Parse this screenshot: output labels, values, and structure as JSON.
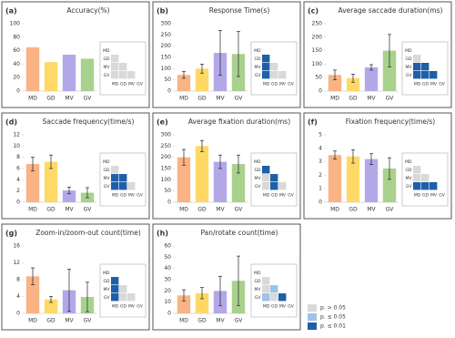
{
  "chart_data": [
    {
      "type": "bar",
      "label": "(a)",
      "title": "Accuracy(%)",
      "categories": [
        "MD",
        "GD",
        "MV",
        "GV"
      ],
      "values": [
        65,
        43,
        54,
        48
      ],
      "colors": [
        "#f9b384",
        "#ffd966",
        "#b4a7e8",
        "#a9d18e"
      ],
      "ylim": [
        0,
        100
      ],
      "yticks": [
        0,
        20,
        40,
        60,
        80,
        100
      ],
      "sig": [
        [
          0
        ],
        [
          0,
          0
        ],
        [
          0,
          0,
          0
        ]
      ]
    },
    {
      "type": "bar",
      "label": "(b)",
      "title": "Response Time(s)",
      "categories": [
        "MD",
        "GD",
        "MV",
        "GV"
      ],
      "values": [
        72,
        100,
        170,
        165
      ],
      "errors": [
        15,
        20,
        100,
        100
      ],
      "colors": [
        "#f9b384",
        "#ffd966",
        "#b4a7e8",
        "#a9d18e"
      ],
      "ylim": [
        0,
        300
      ],
      "yticks": [
        0,
        50,
        100,
        150,
        200,
        250,
        300
      ],
      "sig": [
        [
          2
        ],
        [
          2,
          0
        ],
        [
          2,
          0,
          0
        ]
      ]
    },
    {
      "type": "bar",
      "label": "(c)",
      "title": "Average saccade duration(ms)",
      "categories": [
        "MD",
        "GD",
        "MV",
        "GV"
      ],
      "values": [
        60,
        48,
        88,
        150
      ],
      "errors": [
        18,
        15,
        10,
        60
      ],
      "colors": [
        "#f9b384",
        "#ffd966",
        "#b4a7e8",
        "#a9d18e"
      ],
      "ylim": [
        0,
        250
      ],
      "yticks": [
        0,
        50,
        100,
        150,
        200,
        250
      ],
      "sig": [
        [
          0
        ],
        [
          2,
          2
        ],
        [
          2,
          2,
          2
        ]
      ]
    },
    {
      "type": "bar",
      "label": "(d)",
      "title": "Saccade frequency(time/s)",
      "categories": [
        "MD",
        "GD",
        "MV",
        "GV"
      ],
      "values": [
        6.8,
        7.2,
        2.1,
        1.7
      ],
      "errors": [
        1.2,
        1.2,
        0.6,
        0.9
      ],
      "colors": [
        "#f9b384",
        "#ffd966",
        "#b4a7e8",
        "#a9d18e"
      ],
      "ylim": [
        0,
        12
      ],
      "yticks": [
        0,
        2,
        4,
        6,
        8,
        10,
        12
      ],
      "sig": [
        [
          0
        ],
        [
          2,
          2
        ],
        [
          2,
          2,
          0
        ]
      ]
    },
    {
      "type": "bar",
      "label": "(e)",
      "title": "Average fixation duration(ms)",
      "categories": [
        "MD",
        "GD",
        "MV",
        "GV"
      ],
      "values": [
        200,
        250,
        180,
        170
      ],
      "errors": [
        35,
        25,
        30,
        40
      ],
      "colors": [
        "#f9b384",
        "#ffd966",
        "#b4a7e8",
        "#a9d18e"
      ],
      "ylim": [
        0,
        300
      ],
      "yticks": [
        0,
        50,
        100,
        150,
        200,
        250,
        300
      ],
      "sig": [
        [
          2
        ],
        [
          0,
          2
        ],
        [
          0,
          2,
          0
        ]
      ]
    },
    {
      "type": "bar",
      "label": "(f)",
      "title": "Fixation frequency(time/s)",
      "categories": [
        "MD",
        "GD",
        "MV",
        "GV"
      ],
      "values": [
        3.5,
        3.4,
        3.2,
        2.5
      ],
      "errors": [
        0.3,
        0.5,
        0.4,
        0.8
      ],
      "colors": [
        "#f9b384",
        "#ffd966",
        "#b4a7e8",
        "#a9d18e"
      ],
      "ylim": [
        0,
        5
      ],
      "yticks": [
        0,
        1,
        2,
        3,
        4,
        5
      ],
      "sig": [
        [
          0
        ],
        [
          0,
          0
        ],
        [
          2,
          2,
          2
        ]
      ]
    },
    {
      "type": "bar",
      "label": "(g)",
      "title": "Zoom-in/zoom-out count(time)",
      "categories": [
        "MD",
        "GD",
        "MV",
        "GV"
      ],
      "values": [
        8.8,
        3.3,
        5.5,
        3.9
      ],
      "errors": [
        2,
        0.7,
        5,
        3.5
      ],
      "colors": [
        "#f9b384",
        "#ffd966",
        "#b4a7e8",
        "#a9d18e"
      ],
      "ylim": [
        0,
        16
      ],
      "yticks": [
        0,
        4,
        8,
        12,
        16
      ],
      "sig": [
        [
          2
        ],
        [
          2,
          0
        ],
        [
          2,
          0,
          0
        ]
      ]
    },
    {
      "type": "bar",
      "label": "(h)",
      "title": "Pan/rotate count(time)",
      "categories": [
        "MD",
        "GD",
        "MV",
        "GV"
      ],
      "values": [
        16,
        18,
        20,
        29
      ],
      "errors": [
        5,
        5,
        13,
        22
      ],
      "colors": [
        "#f9b384",
        "#ffd966",
        "#b4a7e8",
        "#a9d18e"
      ],
      "ylim": [
        0,
        60
      ],
      "yticks": [
        0,
        10,
        20,
        30,
        40,
        50,
        60
      ],
      "sig": [
        [
          0
        ],
        [
          0,
          1
        ],
        [
          1,
          0,
          2
        ]
      ]
    }
  ],
  "significance_legend": [
    {
      "label": "p. > 0.05",
      "color": "#d9d9d9"
    },
    {
      "label": "p. ≤ 0.05",
      "color": "#9dc3e6"
    },
    {
      "label": "p. ≤ 0.01",
      "color": "#1f5fa8"
    }
  ]
}
